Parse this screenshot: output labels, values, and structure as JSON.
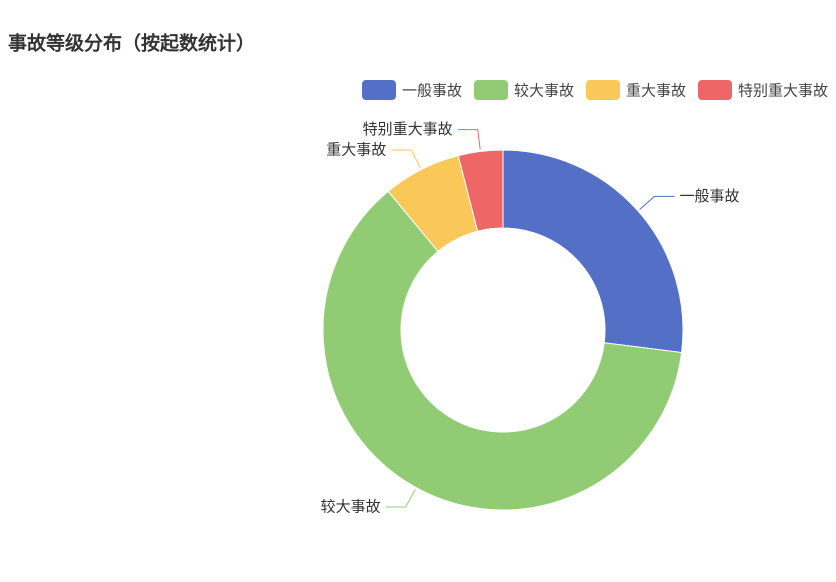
{
  "chart_data": {
    "type": "pie",
    "title": "事故等级分布（按起数统计）",
    "categories": [
      "一般事故",
      "较大事故",
      "重大事故",
      "特别重大事故"
    ],
    "values": [
      27,
      62,
      7,
      4
    ],
    "colors": [
      "#5470c6",
      "#91cc75",
      "#fac858",
      "#ee6666"
    ],
    "legend": "top-right"
  }
}
